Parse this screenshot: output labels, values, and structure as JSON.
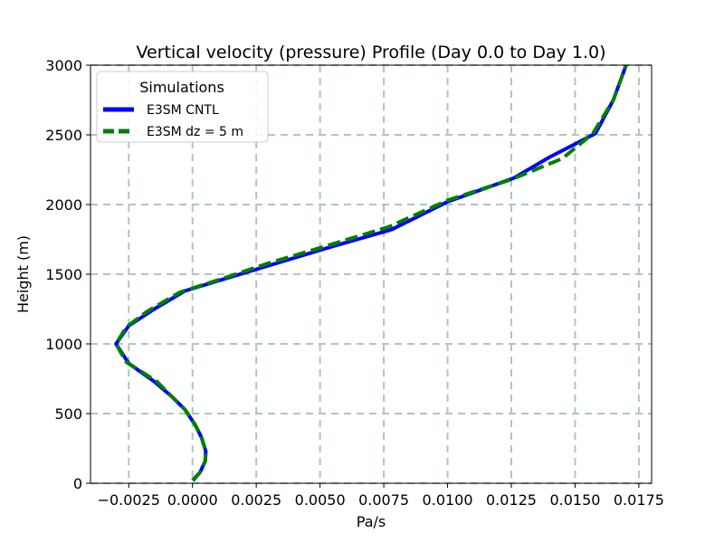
{
  "chart_data": {
    "type": "line",
    "title": "Vertical velocity (pressure) Profile (Day 0.0 to Day 1.0)",
    "xlabel": "Pa/s",
    "ylabel": "Height (m)",
    "xlim": [
      -0.004,
      0.018
    ],
    "ylim": [
      0,
      3000
    ],
    "x_ticks": [
      -0.0025,
      0.0,
      0.0025,
      0.005,
      0.0075,
      0.01,
      0.0125,
      0.015,
      0.0175
    ],
    "x_tick_labels": [
      "−0.0025",
      "0.0000",
      "0.0025",
      "0.0050",
      "0.0075",
      "0.0100",
      "0.0125",
      "0.0150",
      "0.0175"
    ],
    "y_ticks": [
      0,
      500,
      1000,
      1500,
      2000,
      2500,
      3000
    ],
    "y_tick_labels": [
      "0",
      "500",
      "1000",
      "1500",
      "2000",
      "2500",
      "3000"
    ],
    "grid": true,
    "legend": {
      "title": "Simulations",
      "placement": "upper-left"
    },
    "series": [
      {
        "name": "E3SM CNTL",
        "color": "#0000ff",
        "style": "solid",
        "points": [
          [
            2e-05,
            20
          ],
          [
            0.0003,
            80
          ],
          [
            0.0005,
            160
          ],
          [
            0.00052,
            230
          ],
          [
            0.00035,
            330
          ],
          [
            0.0001,
            420
          ],
          [
            -0.0003,
            530
          ],
          [
            -0.0008,
            620
          ],
          [
            -0.0015,
            730
          ],
          [
            -0.0025,
            860
          ],
          [
            -0.003,
            1000
          ],
          [
            -0.0025,
            1130
          ],
          [
            -0.0015,
            1250
          ],
          [
            -0.0003,
            1380
          ],
          [
            0.0015,
            1480
          ],
          [
            0.0035,
            1590
          ],
          [
            0.0055,
            1700
          ],
          [
            0.0078,
            1820
          ],
          [
            0.01,
            2020
          ],
          [
            0.0126,
            2190
          ],
          [
            0.014,
            2340
          ],
          [
            0.0158,
            2510
          ],
          [
            0.0165,
            2750
          ],
          [
            0.017,
            3000
          ]
        ]
      },
      {
        "name": "E3SM dz = 5 m",
        "color": "#008000",
        "style": "dashed",
        "points": [
          [
            0.0,
            20
          ],
          [
            0.0003,
            80
          ],
          [
            0.0005,
            160
          ],
          [
            0.00052,
            230
          ],
          [
            0.00035,
            330
          ],
          [
            0.0001,
            420
          ],
          [
            -0.0003,
            530
          ],
          [
            -0.0008,
            620
          ],
          [
            -0.0014,
            730
          ],
          [
            -0.0026,
            870
          ],
          [
            -0.003,
            1000
          ],
          [
            -0.0026,
            1120
          ],
          [
            -0.0018,
            1230
          ],
          [
            -0.0005,
            1370
          ],
          [
            0.0012,
            1470
          ],
          [
            0.003,
            1580
          ],
          [
            0.0052,
            1700
          ],
          [
            0.0077,
            1840
          ],
          [
            0.01,
            2030
          ],
          [
            0.0125,
            2180
          ],
          [
            0.0145,
            2330
          ],
          [
            0.0157,
            2510
          ],
          [
            0.0165,
            2750
          ],
          [
            0.017,
            3000
          ]
        ]
      }
    ]
  }
}
